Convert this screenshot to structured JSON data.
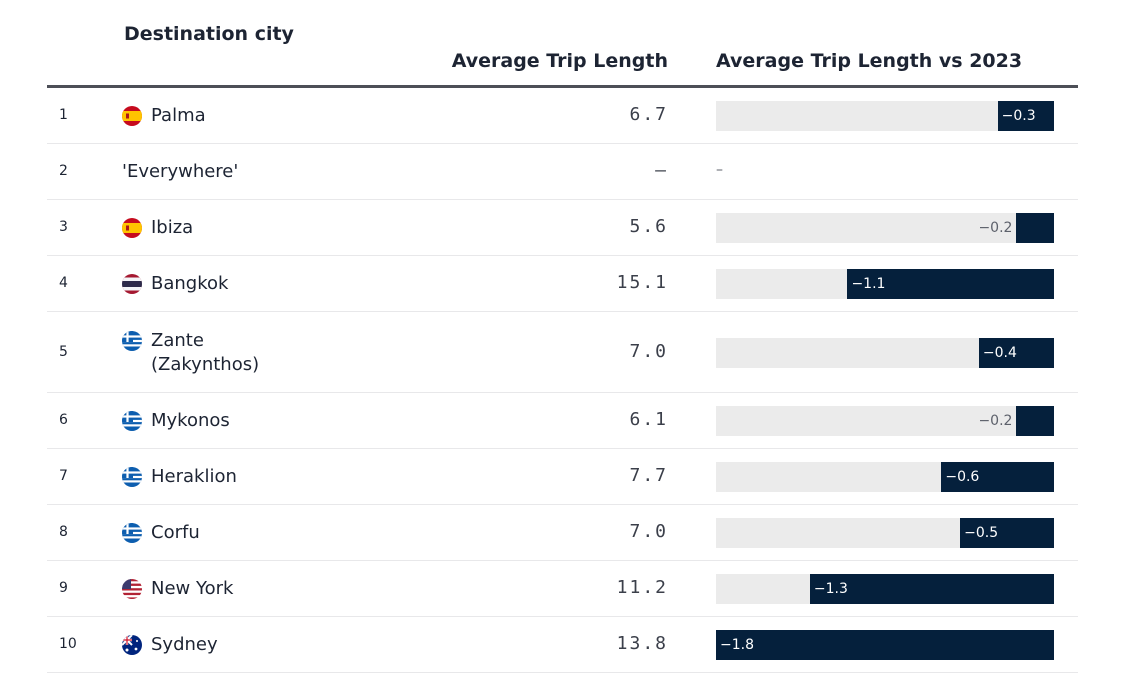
{
  "columns": {
    "rank": "",
    "city": "Destination city",
    "avg": "Average Trip Length",
    "vs": "Average Trip Length vs 2023"
  },
  "chart_data": {
    "type": "table",
    "xlim": [
      -1.8,
      0
    ],
    "rows": [
      {
        "rank": "1",
        "city": "Palma",
        "country": "spain",
        "avg": "6.7",
        "delta": -0.3,
        "delta_label": "−0.3"
      },
      {
        "rank": "2",
        "city": "'Everywhere'",
        "country": "",
        "avg": "–",
        "delta": null,
        "delta_label": "–"
      },
      {
        "rank": "3",
        "city": "Ibiza",
        "country": "spain",
        "avg": "5.6",
        "delta": -0.2,
        "delta_label": "−0.2"
      },
      {
        "rank": "4",
        "city": "Bangkok",
        "country": "thailand",
        "avg": "15.1",
        "delta": -1.1,
        "delta_label": "−1.1"
      },
      {
        "rank": "5",
        "city": "Zante (Zakynthos)",
        "country": "greece",
        "avg": "7.0",
        "delta": -0.4,
        "delta_label": "−0.4"
      },
      {
        "rank": "6",
        "city": "Mykonos",
        "country": "greece",
        "avg": "6.1",
        "delta": -0.2,
        "delta_label": "−0.2"
      },
      {
        "rank": "7",
        "city": "Heraklion",
        "country": "greece",
        "avg": "7.7",
        "delta": -0.6,
        "delta_label": "−0.6"
      },
      {
        "rank": "8",
        "city": "Corfu",
        "country": "greece",
        "avg": "7.0",
        "delta": -0.5,
        "delta_label": "−0.5"
      },
      {
        "rank": "9",
        "city": "New York",
        "country": "usa",
        "avg": "11.2",
        "delta": -1.3,
        "delta_label": "−1.3"
      },
      {
        "rank": "10",
        "city": "Sydney",
        "country": "australia",
        "avg": "13.8",
        "delta": -1.8,
        "delta_label": "−1.8"
      }
    ]
  },
  "colors": {
    "bar": "#05203c",
    "track": "#ebebeb",
    "header_rule": "#4d4f57"
  }
}
